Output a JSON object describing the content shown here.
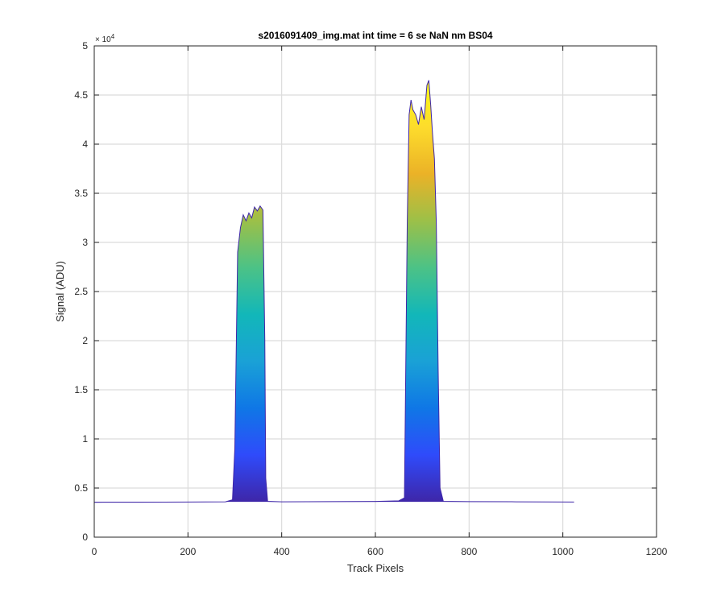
{
  "chart_data": {
    "type": "area",
    "title": "s2016091409_img.mat int time = 6 se  NaN nm BS04",
    "xlabel": "Track Pixels",
    "ylabel": "Signal (ADU)",
    "xlim": [
      0,
      1200
    ],
    "ylim": [
      0,
      50000
    ],
    "x_ticks": [
      "0",
      "200",
      "400",
      "600",
      "800",
      "1000",
      "1200"
    ],
    "y_ticks": [
      "0",
      "0.5",
      "1",
      "1.5",
      "2",
      "2.5",
      "3",
      "3.5",
      "4",
      "4.5",
      "5"
    ],
    "y_exponent_label": "× 10",
    "y_exponent_power": "4",
    "grid": true,
    "legend": "none",
    "colormap": [
      "#3e26a8",
      "#2f4bfb",
      "#0f77e6",
      "#1aa1d6",
      "#12b7b9",
      "#4cc286",
      "#9cc048",
      "#ebb227",
      "#fddc2c",
      "#f9fb15"
    ],
    "baseline": 3600,
    "x": [
      0,
      100,
      200,
      280,
      295,
      300,
      306,
      312,
      318,
      324,
      330,
      336,
      342,
      348,
      354,
      360,
      364,
      366,
      370,
      400,
      500,
      600,
      650,
      662,
      668,
      672,
      676,
      680,
      686,
      692,
      698,
      704,
      710,
      714,
      718,
      722,
      726,
      730,
      734,
      738,
      745,
      800,
      900,
      1024
    ],
    "series": [
      {
        "values": [
          3550,
          3560,
          3580,
          3600,
          3800,
          9000,
          29000,
          31500,
          32800,
          32200,
          33000,
          32500,
          33600,
          33200,
          33700,
          33300,
          20000,
          6000,
          3650,
          3600,
          3620,
          3640,
          3700,
          4000,
          32000,
          43000,
          44500,
          43500,
          43000,
          42000,
          43800,
          42500,
          46000,
          46500,
          44000,
          41000,
          38500,
          32000,
          17000,
          5000,
          3650,
          3620,
          3600,
          3580
        ]
      }
    ]
  }
}
